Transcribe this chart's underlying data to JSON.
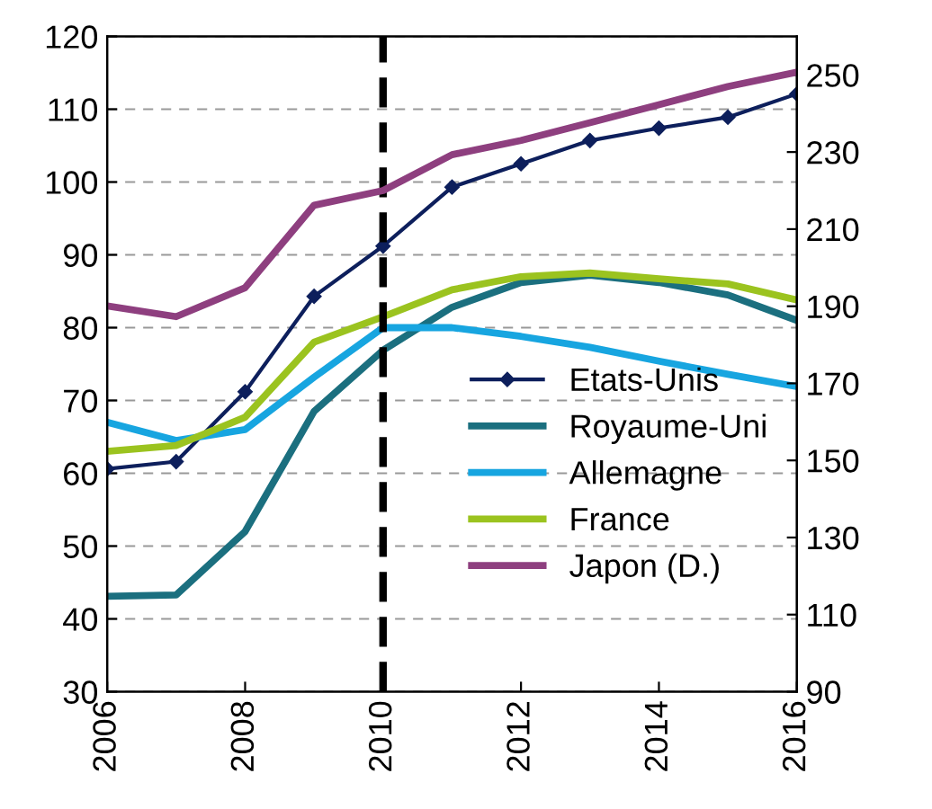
{
  "chart_data": {
    "type": "line",
    "x": [
      2006,
      2007,
      2008,
      2009,
      2010,
      2011,
      2012,
      2013,
      2014,
      2015,
      2016
    ],
    "series": [
      {
        "name": "Etats-Unis",
        "color": "#0d1f5c",
        "marker": "diamond",
        "values": [
          60.6,
          61.6,
          71.2,
          84.3,
          91.2,
          99.3,
          102.5,
          105.7,
          107.4,
          108.9,
          112.1
        ]
      },
      {
        "name": "Royaume-Uni",
        "color": "#1b6f7f",
        "values": [
          43.1,
          43.3,
          52,
          68.5,
          76.9,
          82.8,
          86.2,
          87.2,
          86.2,
          84.5,
          81
        ]
      },
      {
        "name": "Allemagne",
        "color": "#17a5e0",
        "values": [
          67,
          64.5,
          66,
          73.2,
          80,
          80,
          78.8,
          77.3,
          75.4,
          73.6,
          71.9
        ]
      },
      {
        "name": "France",
        "color": "#9bc31f",
        "values": [
          63,
          63.8,
          67.7,
          78,
          81.5,
          85.2,
          87,
          87.5,
          86.7,
          86,
          83.8
        ]
      },
      {
        "name": "Japon (D.)",
        "color": "#8e3f7f",
        "axis": "y2",
        "values": [
          190.1,
          187.3,
          194.8,
          216.2,
          220,
          229.3,
          233,
          237.6,
          242.3,
          247,
          250.7
        ]
      }
    ],
    "xlim": [
      2006,
      2016
    ],
    "xticks": [
      2006,
      2008,
      2010,
      2012,
      2014,
      2016
    ],
    "ylim": [
      30,
      120
    ],
    "yticks": [
      30,
      40,
      50,
      60,
      70,
      80,
      90,
      100,
      110,
      120
    ],
    "y2lim": [
      90,
      260
    ],
    "y2ticks": [
      90,
      110,
      130,
      150,
      170,
      190,
      210,
      230,
      250
    ],
    "ref_lines": [
      {
        "axis": "x",
        "value": 2010,
        "color": "#000000",
        "line_style": "dashed"
      }
    ],
    "grid": "y",
    "legend": "right"
  }
}
